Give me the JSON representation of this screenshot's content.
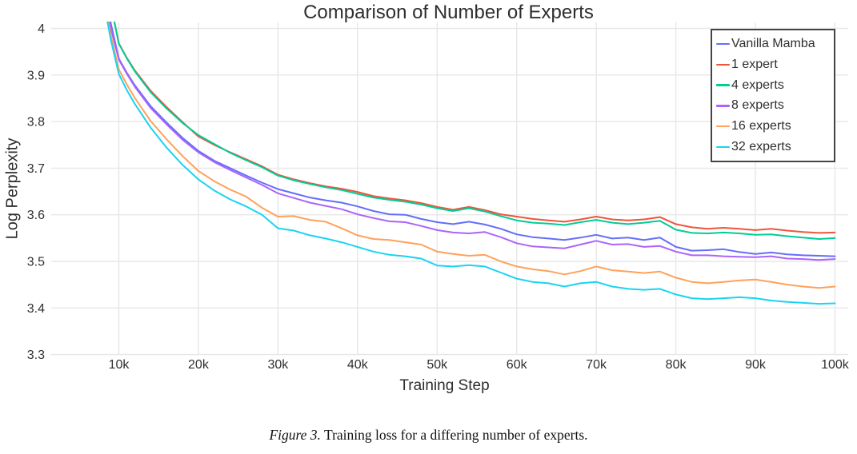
{
  "title": "Comparison of Number of Experts",
  "caption": {
    "label": "Figure 3.",
    "text": " Training loss for a differing number of experts."
  },
  "colors": {
    "grid": "#e7e7e7",
    "tick_text": "#303030",
    "title_text": "#2e2e2e",
    "legend_border": "#444444",
    "background": "#ffffff"
  },
  "chart_data": {
    "type": "line",
    "title": "Comparison of Number of Experts",
    "xlabel": "Training Step",
    "ylabel": "Log Perplexity",
    "x_unit": "thousand training steps",
    "xlim": [
      1.5,
      101.7
    ],
    "ylim": [
      3.3,
      4.015
    ],
    "grid": true,
    "legend_position": "top-right-inside",
    "x_ticks": {
      "labels": [
        "10k",
        "20k",
        "30k",
        "40k",
        "50k",
        "60k",
        "70k",
        "80k",
        "90k",
        "100k"
      ],
      "values": [
        10,
        20,
        30,
        40,
        50,
        60,
        70,
        80,
        90,
        100
      ]
    },
    "y_ticks": {
      "labels": [
        "4",
        "3.9",
        "3.8",
        "3.7",
        "3.6",
        "3.5",
        "3.4",
        "3.3"
      ],
      "values": [
        4.0,
        3.9,
        3.8,
        3.7,
        3.6,
        3.5,
        3.4,
        3.3
      ]
    },
    "x": [
      8.5,
      9,
      10,
      11,
      12,
      14,
      16,
      18,
      20,
      22,
      24,
      26,
      28,
      30,
      32,
      34,
      36,
      38,
      40,
      42,
      44,
      46,
      48,
      50,
      52,
      54,
      56,
      58,
      60,
      62,
      64,
      66,
      68,
      70,
      72,
      74,
      76,
      78,
      80,
      82,
      84,
      86,
      88,
      90,
      92,
      94,
      96,
      98,
      100
    ],
    "series": [
      {
        "name": "Vanilla Mamba",
        "color": "#636EFA",
        "values": [
          4.06,
          4.01,
          3.935,
          3.905,
          3.878,
          3.833,
          3.798,
          3.765,
          3.737,
          3.716,
          3.7,
          3.684,
          3.669,
          3.655,
          3.646,
          3.637,
          3.631,
          3.626,
          3.618,
          3.608,
          3.601,
          3.6,
          3.591,
          3.584,
          3.58,
          3.585,
          3.579,
          3.57,
          3.558,
          3.552,
          3.549,
          3.546,
          3.551,
          3.557,
          3.549,
          3.551,
          3.546,
          3.551,
          3.531,
          3.523,
          3.524,
          3.526,
          3.52,
          3.516,
          3.519,
          3.515,
          3.513,
          3.512,
          3.511
        ]
      },
      {
        "name": "1 expert",
        "color": "#EF553B",
        "values": [
          4.1,
          4.05,
          3.968,
          3.937,
          3.91,
          3.866,
          3.831,
          3.799,
          3.768,
          3.75,
          3.734,
          3.719,
          3.704,
          3.686,
          3.676,
          3.668,
          3.661,
          3.656,
          3.649,
          3.64,
          3.635,
          3.631,
          3.625,
          3.617,
          3.611,
          3.617,
          3.61,
          3.601,
          3.596,
          3.591,
          3.588,
          3.585,
          3.59,
          3.596,
          3.59,
          3.588,
          3.59,
          3.595,
          3.58,
          3.573,
          3.57,
          3.572,
          3.57,
          3.567,
          3.57,
          3.566,
          3.563,
          3.561,
          3.562
        ]
      },
      {
        "name": "4 experts",
        "color": "#00CC96",
        "values": [
          4.1,
          4.05,
          3.967,
          3.936,
          3.908,
          3.863,
          3.828,
          3.797,
          3.771,
          3.752,
          3.733,
          3.717,
          3.702,
          3.684,
          3.674,
          3.666,
          3.659,
          3.653,
          3.645,
          3.637,
          3.632,
          3.628,
          3.622,
          3.614,
          3.608,
          3.614,
          3.607,
          3.597,
          3.588,
          3.583,
          3.581,
          3.578,
          3.584,
          3.589,
          3.583,
          3.58,
          3.583,
          3.587,
          3.568,
          3.561,
          3.56,
          3.562,
          3.56,
          3.557,
          3.558,
          3.554,
          3.551,
          3.548,
          3.55
        ]
      },
      {
        "name": "8 experts",
        "color": "#AB63FA",
        "values": [
          4.05,
          4.0,
          3.933,
          3.903,
          3.875,
          3.829,
          3.794,
          3.761,
          3.734,
          3.713,
          3.696,
          3.68,
          3.664,
          3.646,
          3.636,
          3.626,
          3.619,
          3.612,
          3.601,
          3.593,
          3.586,
          3.584,
          3.576,
          3.567,
          3.562,
          3.56,
          3.563,
          3.552,
          3.539,
          3.532,
          3.53,
          3.528,
          3.536,
          3.544,
          3.536,
          3.537,
          3.531,
          3.533,
          3.521,
          3.513,
          3.513,
          3.511,
          3.51,
          3.509,
          3.511,
          3.506,
          3.505,
          3.503,
          3.505
        ]
      },
      {
        "name": "16 experts",
        "color": "#FFA15A",
        "values": [
          4.03,
          3.985,
          3.912,
          3.88,
          3.851,
          3.801,
          3.762,
          3.726,
          3.694,
          3.672,
          3.654,
          3.639,
          3.615,
          3.596,
          3.597,
          3.589,
          3.585,
          3.571,
          3.556,
          3.548,
          3.546,
          3.541,
          3.536,
          3.521,
          3.516,
          3.512,
          3.514,
          3.5,
          3.489,
          3.483,
          3.479,
          3.472,
          3.479,
          3.489,
          3.481,
          3.478,
          3.475,
          3.478,
          3.465,
          3.456,
          3.453,
          3.456,
          3.459,
          3.461,
          3.456,
          3.45,
          3.446,
          3.443,
          3.446
        ]
      },
      {
        "name": "32 experts",
        "color": "#19D3F3",
        "values": [
          4.02,
          3.975,
          3.902,
          3.868,
          3.838,
          3.787,
          3.744,
          3.707,
          3.676,
          3.652,
          3.633,
          3.618,
          3.6,
          3.571,
          3.566,
          3.556,
          3.549,
          3.541,
          3.531,
          3.521,
          3.514,
          3.511,
          3.506,
          3.491,
          3.489,
          3.492,
          3.489,
          3.476,
          3.463,
          3.456,
          3.453,
          3.446,
          3.453,
          3.456,
          3.446,
          3.441,
          3.439,
          3.441,
          3.429,
          3.421,
          3.419,
          3.421,
          3.423,
          3.421,
          3.416,
          3.413,
          3.411,
          3.409,
          3.41
        ]
      }
    ]
  }
}
